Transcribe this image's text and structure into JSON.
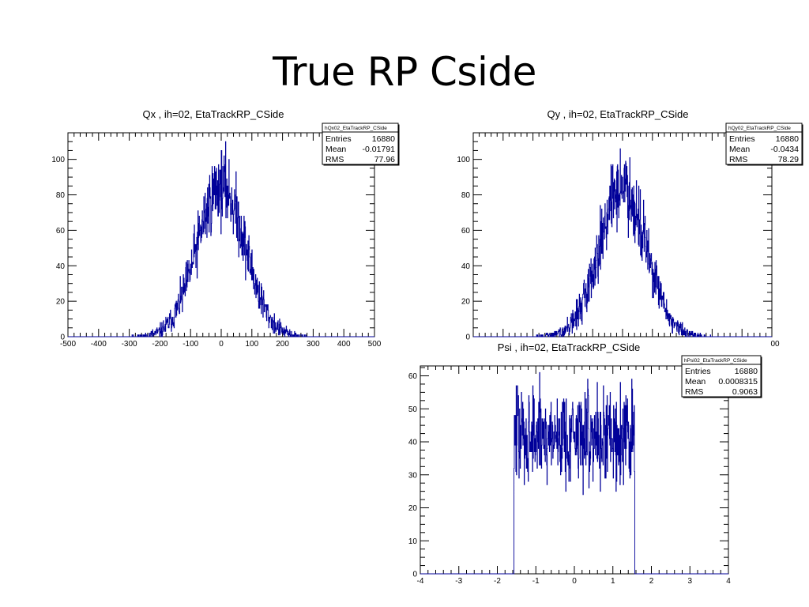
{
  "slide": {
    "title": "True RP Cside"
  },
  "chart_data": [
    {
      "type": "histogram",
      "title": "Qx , ih=02, EtaTrackRP_CSide",
      "stats": {
        "name": "hQx02_EtaTrackRP_CSide",
        "rows": [
          [
            "Entries",
            "16880"
          ],
          [
            "Mean",
            "-0.01791"
          ],
          [
            "RMS",
            "77.96"
          ]
        ]
      },
      "xlim": [
        -500,
        500
      ],
      "ylim": [
        0,
        115
      ],
      "xticks": [
        "-500",
        "-400",
        "-300",
        "-200",
        "-100",
        "0",
        "100",
        "200",
        "300",
        "400",
        "500"
      ],
      "yticks": [
        "0",
        "20",
        "40",
        "60",
        "80",
        "100"
      ],
      "nbins": 1000,
      "line_color": "#000099",
      "distribution": {
        "kind": "gaussian",
        "peak": 85,
        "center": 0,
        "sigma": 78
      }
    },
    {
      "type": "histogram",
      "title": "Qy , ih=02, EtaTrackRP_CSide",
      "stats": {
        "name": "hQy02_EtaTrackRP_CSide",
        "rows": [
          [
            "Entries",
            "16880"
          ],
          [
            "Mean",
            "-0.0434"
          ],
          [
            "RMS",
            "78.29"
          ]
        ]
      },
      "xlim": [
        -500,
        500
      ],
      "ylim": [
        0,
        115
      ],
      "xticks": [
        "00"
      ],
      "yticks": [
        "0",
        "20",
        "40",
        "60",
        "80",
        "100"
      ],
      "nbins": 1000,
      "line_color": "#000099",
      "distribution": {
        "kind": "gaussian",
        "peak": 85,
        "center": 0,
        "sigma": 78
      }
    },
    {
      "type": "histogram",
      "title": "Psi , ih=02, EtaTrackRP_CSide",
      "stats": {
        "name": "hPsi02_EtaTrackRP_CSide",
        "rows": [
          [
            "Entries",
            "16880"
          ],
          [
            "Mean",
            "0.0008315"
          ],
          [
            "RMS",
            "0.9063"
          ]
        ]
      },
      "xlim": [
        -4,
        4
      ],
      "ylim": [
        0,
        63
      ],
      "xticks": [
        "-4",
        "-3",
        "-2",
        "-1",
        "0",
        "1",
        "2",
        "3",
        "4"
      ],
      "yticks": [
        "0",
        "10",
        "20",
        "30",
        "40",
        "50",
        "60"
      ],
      "nbins": 1000,
      "line_color": "#000099",
      "distribution": {
        "kind": "uniform",
        "level": 42,
        "from": -1.5708,
        "to": 1.5708
      }
    }
  ]
}
